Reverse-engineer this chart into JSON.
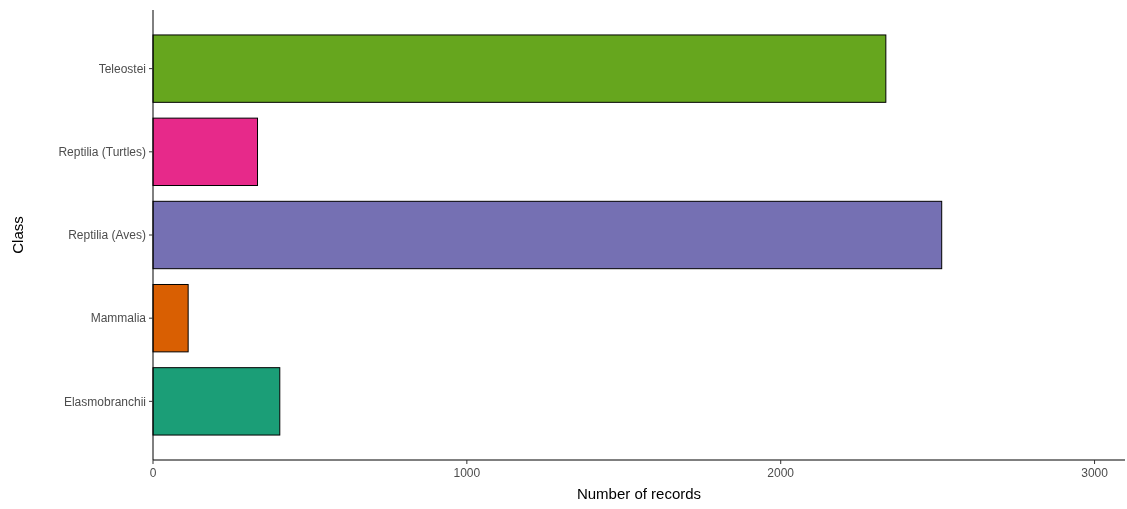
{
  "chart_data": {
    "type": "bar",
    "orientation": "horizontal",
    "xlabel": "Number of records",
    "ylabel": "Class",
    "categories": [
      "Teleostei",
      "Reptilia (Turtles)",
      "Reptilia (Aves)",
      "Mammalia",
      "Elasmobranchii"
    ],
    "values": [
      2335,
      333,
      2513,
      112,
      404
    ],
    "colors": [
      "#66a61e",
      "#e7298a",
      "#7570b3",
      "#d95f02",
      "#1b9e77"
    ],
    "xlim": [
      0,
      3097
    ],
    "xticks": [
      0,
      1000,
      2000,
      3000
    ],
    "grid": false
  }
}
